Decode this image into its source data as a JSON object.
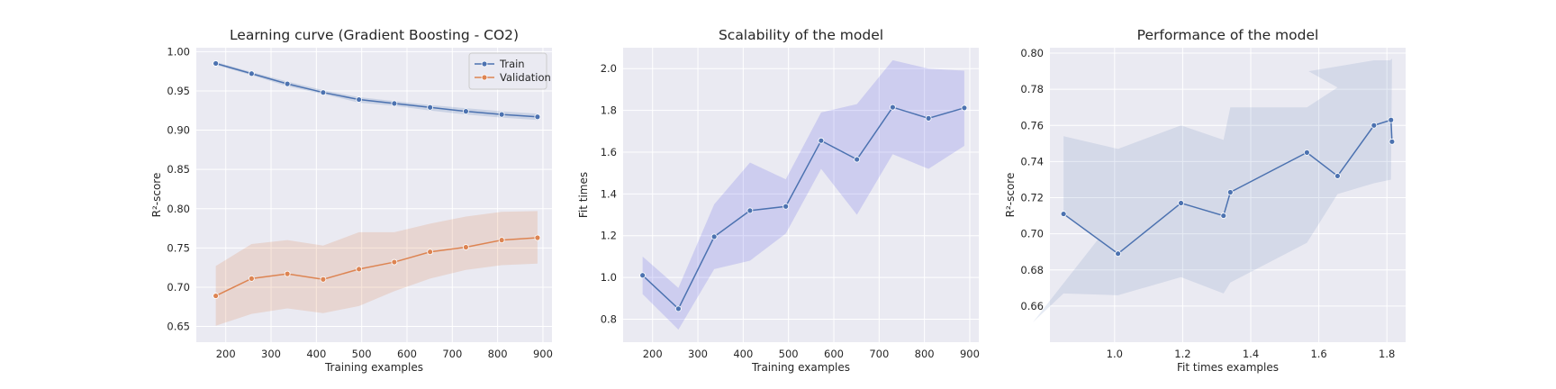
{
  "chart_data": [
    {
      "type": "line",
      "title": "Learning curve (Gradient Boosting - CO2)",
      "xlabel": "Training examples",
      "ylabel": "R²-score",
      "xlim": [
        135,
        920
      ],
      "ylim": [
        0.63,
        1.005
      ],
      "xticks": [
        200,
        300,
        400,
        500,
        600,
        700,
        800,
        900
      ],
      "xtick_labels": [
        "200",
        "300",
        "400",
        "500",
        "600",
        "700",
        "800",
        "900"
      ],
      "yticks": [
        0.65,
        0.7,
        0.75,
        0.8,
        0.85,
        0.9,
        0.95,
        1.0
      ],
      "ytick_labels": [
        "0.65",
        "0.70",
        "0.75",
        "0.80",
        "0.85",
        "0.90",
        "0.95",
        "1.00"
      ],
      "grid": true,
      "legend": "top-right",
      "series": [
        {
          "name": "Train",
          "color": "#4c72b0",
          "x": [
            178,
            257,
            336,
            415,
            494,
            572,
            651,
            730,
            809,
            888
          ],
          "y": [
            0.985,
            0.972,
            0.959,
            0.948,
            0.939,
            0.934,
            0.929,
            0.924,
            0.92,
            0.917
          ],
          "band_low": [
            0.983,
            0.97,
            0.956,
            0.946,
            0.935,
            0.931,
            0.925,
            0.92,
            0.916,
            0.913
          ],
          "band_high": [
            0.987,
            0.974,
            0.962,
            0.951,
            0.942,
            0.937,
            0.932,
            0.928,
            0.924,
            0.921
          ]
        },
        {
          "name": "Validation",
          "color": "#dd8452",
          "x": [
            178,
            257,
            336,
            415,
            494,
            572,
            651,
            730,
            809,
            888
          ],
          "y": [
            0.689,
            0.711,
            0.717,
            0.71,
            0.723,
            0.732,
            0.745,
            0.751,
            0.76,
            0.763
          ],
          "band_low": [
            0.651,
            0.666,
            0.673,
            0.667,
            0.676,
            0.695,
            0.711,
            0.722,
            0.728,
            0.73
          ],
          "band_high": [
            0.727,
            0.755,
            0.76,
            0.753,
            0.77,
            0.77,
            0.781,
            0.79,
            0.796,
            0.797
          ]
        }
      ]
    },
    {
      "type": "line",
      "title": "Scalability of the model",
      "xlabel": "Training examples",
      "ylabel": "Fit times",
      "xlim": [
        135,
        920
      ],
      "ylim": [
        0.69,
        2.1
      ],
      "xticks": [
        200,
        300,
        400,
        500,
        600,
        700,
        800,
        900
      ],
      "xtick_labels": [
        "200",
        "300",
        "400",
        "500",
        "600",
        "700",
        "800",
        "900"
      ],
      "yticks": [
        0.8,
        1.0,
        1.2,
        1.4,
        1.6,
        1.8,
        2.0
      ],
      "ytick_labels": [
        "0.8",
        "1.0",
        "1.2",
        "1.4",
        "1.6",
        "1.8",
        "2.0"
      ],
      "grid": true,
      "series": [
        {
          "color": "#4c72b0",
          "band_color": "#5a5ae8",
          "x": [
            178,
            257,
            336,
            415,
            494,
            572,
            651,
            730,
            809,
            888
          ],
          "y": [
            1.01,
            0.85,
            1.195,
            1.32,
            1.34,
            1.655,
            1.565,
            1.815,
            1.762,
            1.812
          ],
          "band_low": [
            0.92,
            0.75,
            1.04,
            1.08,
            1.21,
            1.52,
            1.3,
            1.59,
            1.52,
            1.63
          ],
          "band_high": [
            1.1,
            0.95,
            1.35,
            1.55,
            1.47,
            1.79,
            1.83,
            2.04,
            2.0,
            1.99
          ]
        }
      ]
    },
    {
      "type": "line",
      "title": "Performance of the model",
      "xlabel": "Fit times examples",
      "ylabel": "R²-score",
      "xlim": [
        0.81,
        1.855
      ],
      "ylim": [
        0.64,
        0.803
      ],
      "xticks": [
        1.0,
        1.2,
        1.4,
        1.6,
        1.8
      ],
      "xtick_labels": [
        "1.0",
        "1.2",
        "1.4",
        "1.6",
        "1.8"
      ],
      "yticks": [
        0.66,
        0.68,
        0.7,
        0.72,
        0.74,
        0.76,
        0.78,
        0.8
      ],
      "ytick_labels": [
        "0.66",
        "0.68",
        "0.70",
        "0.72",
        "0.74",
        "0.76",
        "0.78",
        "0.80"
      ],
      "grid": true,
      "series": [
        {
          "color": "#4c72b0",
          "x": [
            0.85,
            1.01,
            1.195,
            1.32,
            1.34,
            1.565,
            1.655,
            1.762,
            1.812,
            1.815
          ],
          "y": [
            0.711,
            0.689,
            0.717,
            0.71,
            0.723,
            0.745,
            0.732,
            0.76,
            0.763,
            0.751
          ],
          "band": [
            [
              0.85,
              0.754
            ],
            [
              1.01,
              0.747
            ],
            [
              1.195,
              0.76
            ],
            [
              1.32,
              0.752
            ],
            [
              1.34,
              0.77
            ],
            [
              1.565,
              0.77
            ],
            [
              1.655,
              0.781
            ],
            [
              1.57,
              0.79
            ],
            [
              1.762,
              0.796
            ],
            [
              1.81,
              0.796
            ],
            [
              1.815,
              0.797
            ],
            [
              1.812,
              0.73
            ],
            [
              1.762,
              0.728
            ],
            [
              1.655,
              0.722
            ],
            [
              1.565,
              0.695
            ],
            [
              1.34,
              0.673
            ],
            [
              1.32,
              0.667
            ],
            [
              1.195,
              0.676
            ],
            [
              1.01,
              0.666
            ],
            [
              0.85,
              0.667
            ],
            [
              0.76,
              0.651
            ],
            [
              1.01,
              0.711
            ],
            [
              1.01,
              0.689
            ],
            [
              0.85,
              0.711
            ]
          ]
        }
      ]
    }
  ]
}
